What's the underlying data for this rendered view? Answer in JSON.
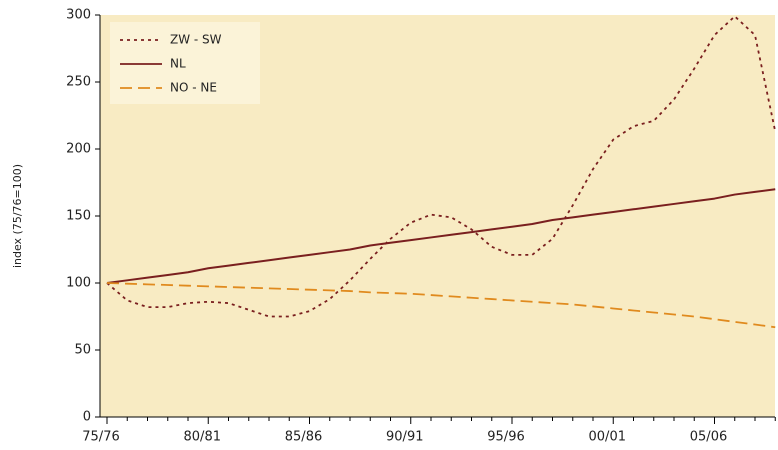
{
  "chart_data": {
    "type": "line",
    "y_label": "index (75/76=100)",
    "categories": [
      "75/76",
      null,
      null,
      null,
      null,
      "80/81",
      null,
      null,
      null,
      null,
      "85/86",
      null,
      null,
      null,
      null,
      "90/91",
      null,
      null,
      null,
      null,
      "95/96",
      null,
      null,
      null,
      null,
      "00/01",
      null,
      null,
      null,
      null,
      "05/06",
      null,
      null,
      null
    ],
    "series": [
      {
        "name": "ZW - SW",
        "color": "#7a1f1f",
        "dash": "3,4",
        "values": [
          100,
          87,
          82,
          82,
          85,
          86,
          85,
          80,
          75,
          75,
          79,
          88,
          102,
          118,
          133,
          145,
          151,
          149,
          140,
          127,
          121,
          121,
          133,
          158,
          185,
          207,
          217,
          221,
          237,
          260,
          285,
          299,
          285,
          213
        ]
      },
      {
        "name": "NL",
        "color": "#7a1f1f",
        "dash": "none",
        "values": [
          100,
          102,
          104,
          106,
          108,
          111,
          113,
          115,
          117,
          119,
          121,
          123,
          125,
          128,
          130,
          132,
          134,
          136,
          138,
          140,
          142,
          144,
          147,
          149,
          151,
          153,
          155,
          157,
          159,
          161,
          163,
          166,
          168,
          170
        ]
      },
      {
        "name": "NO - NE",
        "color": "#e08a1e",
        "dash": "12,6",
        "values": [
          100,
          99.5,
          99,
          98.5,
          98,
          97.5,
          97,
          96.5,
          96,
          95.5,
          95,
          94.5,
          94,
          93,
          92.5,
          92,
          91,
          90,
          89,
          88,
          87,
          86,
          85,
          84,
          82.5,
          81,
          79.5,
          78,
          76.5,
          75,
          73,
          71,
          69,
          67
        ]
      }
    ],
    "ylim": [
      0,
      300
    ],
    "yticks": [
      0,
      50,
      100,
      150,
      200,
      250,
      300
    ]
  }
}
